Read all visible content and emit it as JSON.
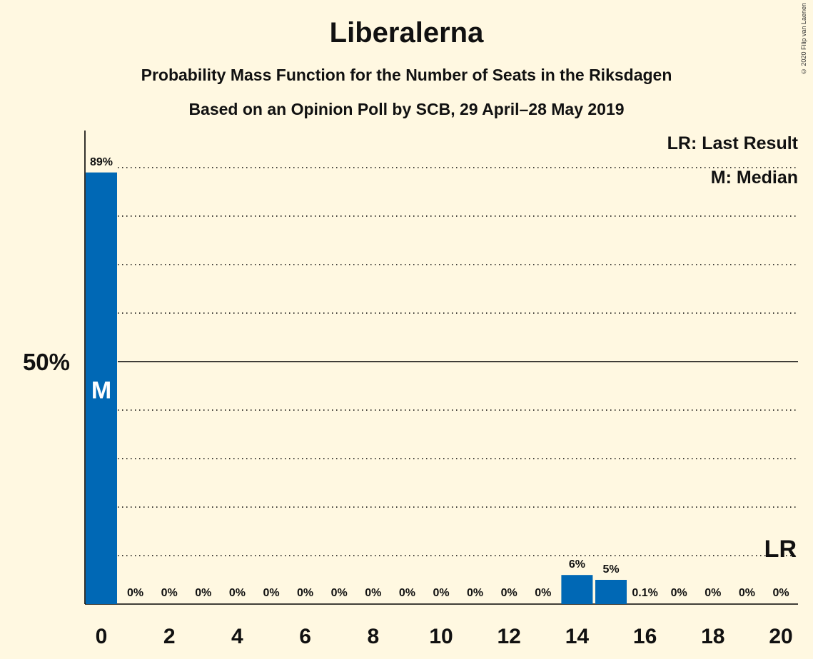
{
  "title": "Liberalerna",
  "subtitle": "Probability Mass Function for the Number of Seats in the Riksdagen",
  "subtitle2": "Based on an Opinion Poll by SCB, 29 April–28 May 2019",
  "copyright": "© 2020 Filip van Laenen",
  "legend": {
    "last_result": "LR: Last Result",
    "median": "M: Median"
  },
  "colors": {
    "bar": "#0068b5",
    "background": "#fff8e1",
    "axis": "#000000"
  },
  "chart_data": {
    "type": "bar",
    "categories": [
      0,
      1,
      2,
      3,
      4,
      5,
      6,
      7,
      8,
      9,
      10,
      11,
      12,
      13,
      14,
      15,
      16,
      17,
      18,
      19,
      20
    ],
    "values": [
      89,
      0,
      0,
      0,
      0,
      0,
      0,
      0,
      0,
      0,
      0,
      0,
      0,
      0,
      6,
      5,
      0.1,
      0,
      0,
      0,
      0
    ],
    "labels": [
      "89%",
      "0%",
      "0%",
      "0%",
      "0%",
      "0%",
      "0%",
      "0%",
      "0%",
      "0%",
      "0%",
      "0%",
      "0%",
      "0%",
      "6%",
      "5%",
      "0.1%",
      "0%",
      "0%",
      "0%",
      "0%"
    ],
    "x_ticks": [
      0,
      2,
      4,
      6,
      8,
      10,
      12,
      14,
      16,
      18,
      20
    ],
    "y_tick_label": "50%",
    "y_tick_value": 50,
    "ylim": [
      0,
      97
    ],
    "median_seat": 0,
    "median_marker": "M",
    "last_result_seat": 20,
    "last_result_marker": "LR",
    "grid": "dotted every 10%"
  }
}
